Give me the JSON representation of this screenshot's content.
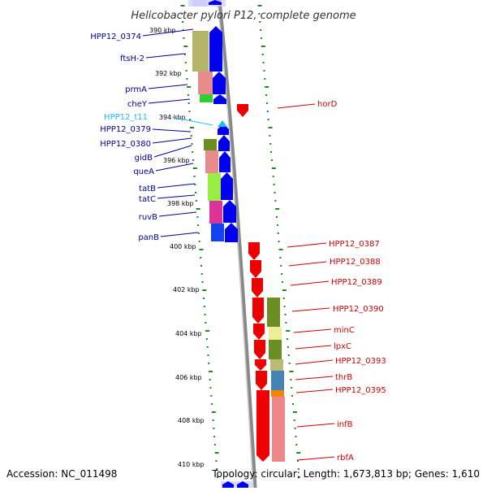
{
  "title": "Helicobacter pylori P12, complete genome",
  "footer": {
    "accession": "Accession: NC_011498",
    "summary": "Topology: circular; Length: 1,673,813 bp; Genes: 1,610"
  },
  "colors": {
    "plus_strand": "#0000ee",
    "minus_strand": "#ee0000",
    "rna_label": "#22bbee",
    "tick": "#228822",
    "backbone": "#888888"
  },
  "ruler": {
    "unit": "kbp",
    "labels": [
      "390 kbp",
      "392 kbp",
      "394 kbp",
      "396 kbp",
      "398 kbp",
      "400 kbp",
      "402 kbp",
      "404 kbp",
      "406 kbp",
      "408 kbp",
      "410 kbp"
    ]
  },
  "genes_left": [
    "HPP12_0374",
    "ftsH-2",
    "prmA",
    "cheY",
    "HPP12_t11",
    "HPP12_0379",
    "HPP12_0380",
    "gidB",
    "queA",
    "tatB",
    "tatC",
    "ruvB",
    "panB"
  ],
  "genes_right": [
    "horD",
    "HPP12_0387",
    "HPP12_0388",
    "HPP12_0389",
    "HPP12_0390",
    "minC",
    "lpxC",
    "HPP12_0393",
    "thrB",
    "HPP12_0395",
    "infB",
    "rbfA"
  ]
}
